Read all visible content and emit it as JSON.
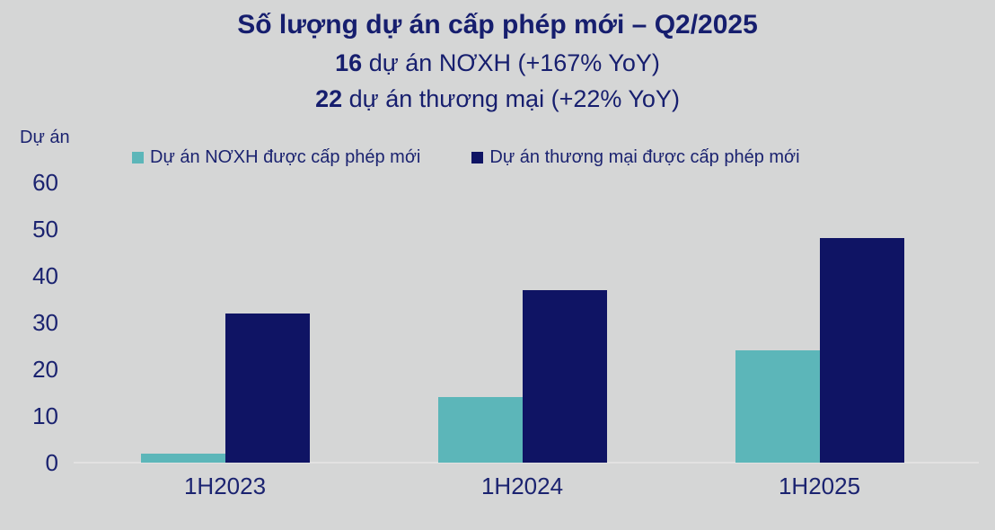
{
  "title": "Số lượng dự án cấp phép mới – Q2/2025",
  "subtitle1": {
    "number": "16",
    "rest": " dự án NƠXH (+167% YoY)"
  },
  "subtitle2": {
    "number": "22",
    "rest": " dự án thương mại (+22% YoY)"
  },
  "y_axis_unit": "Dự án",
  "colors": {
    "background": "#d5d6d6",
    "text_navy": "#1b2370",
    "title_navy": "#161e6e",
    "teal": "#5cb6b9",
    "navy": "#0f1464",
    "baseline": "#e2e2e2"
  },
  "chart_data": {
    "type": "bar",
    "categories": [
      "1H2023",
      "1H2024",
      "1H2025"
    ],
    "series": [
      {
        "name": "Dự án NƠXH được cấp phép mới",
        "color": "#5cb6b9",
        "values": [
          2,
          14,
          24
        ]
      },
      {
        "name": "Dự án thương mại được cấp phép mới",
        "color": "#0f1464",
        "values": [
          32,
          37,
          48
        ]
      }
    ],
    "title": "Số lượng dự án cấp phép mới – Q2/2025",
    "xlabel": "",
    "ylabel": "Dự án",
    "ylim": [
      0,
      60
    ],
    "yticks": [
      0,
      10,
      20,
      30,
      40,
      50,
      60
    ],
    "grid": false,
    "legend_position": "top"
  }
}
